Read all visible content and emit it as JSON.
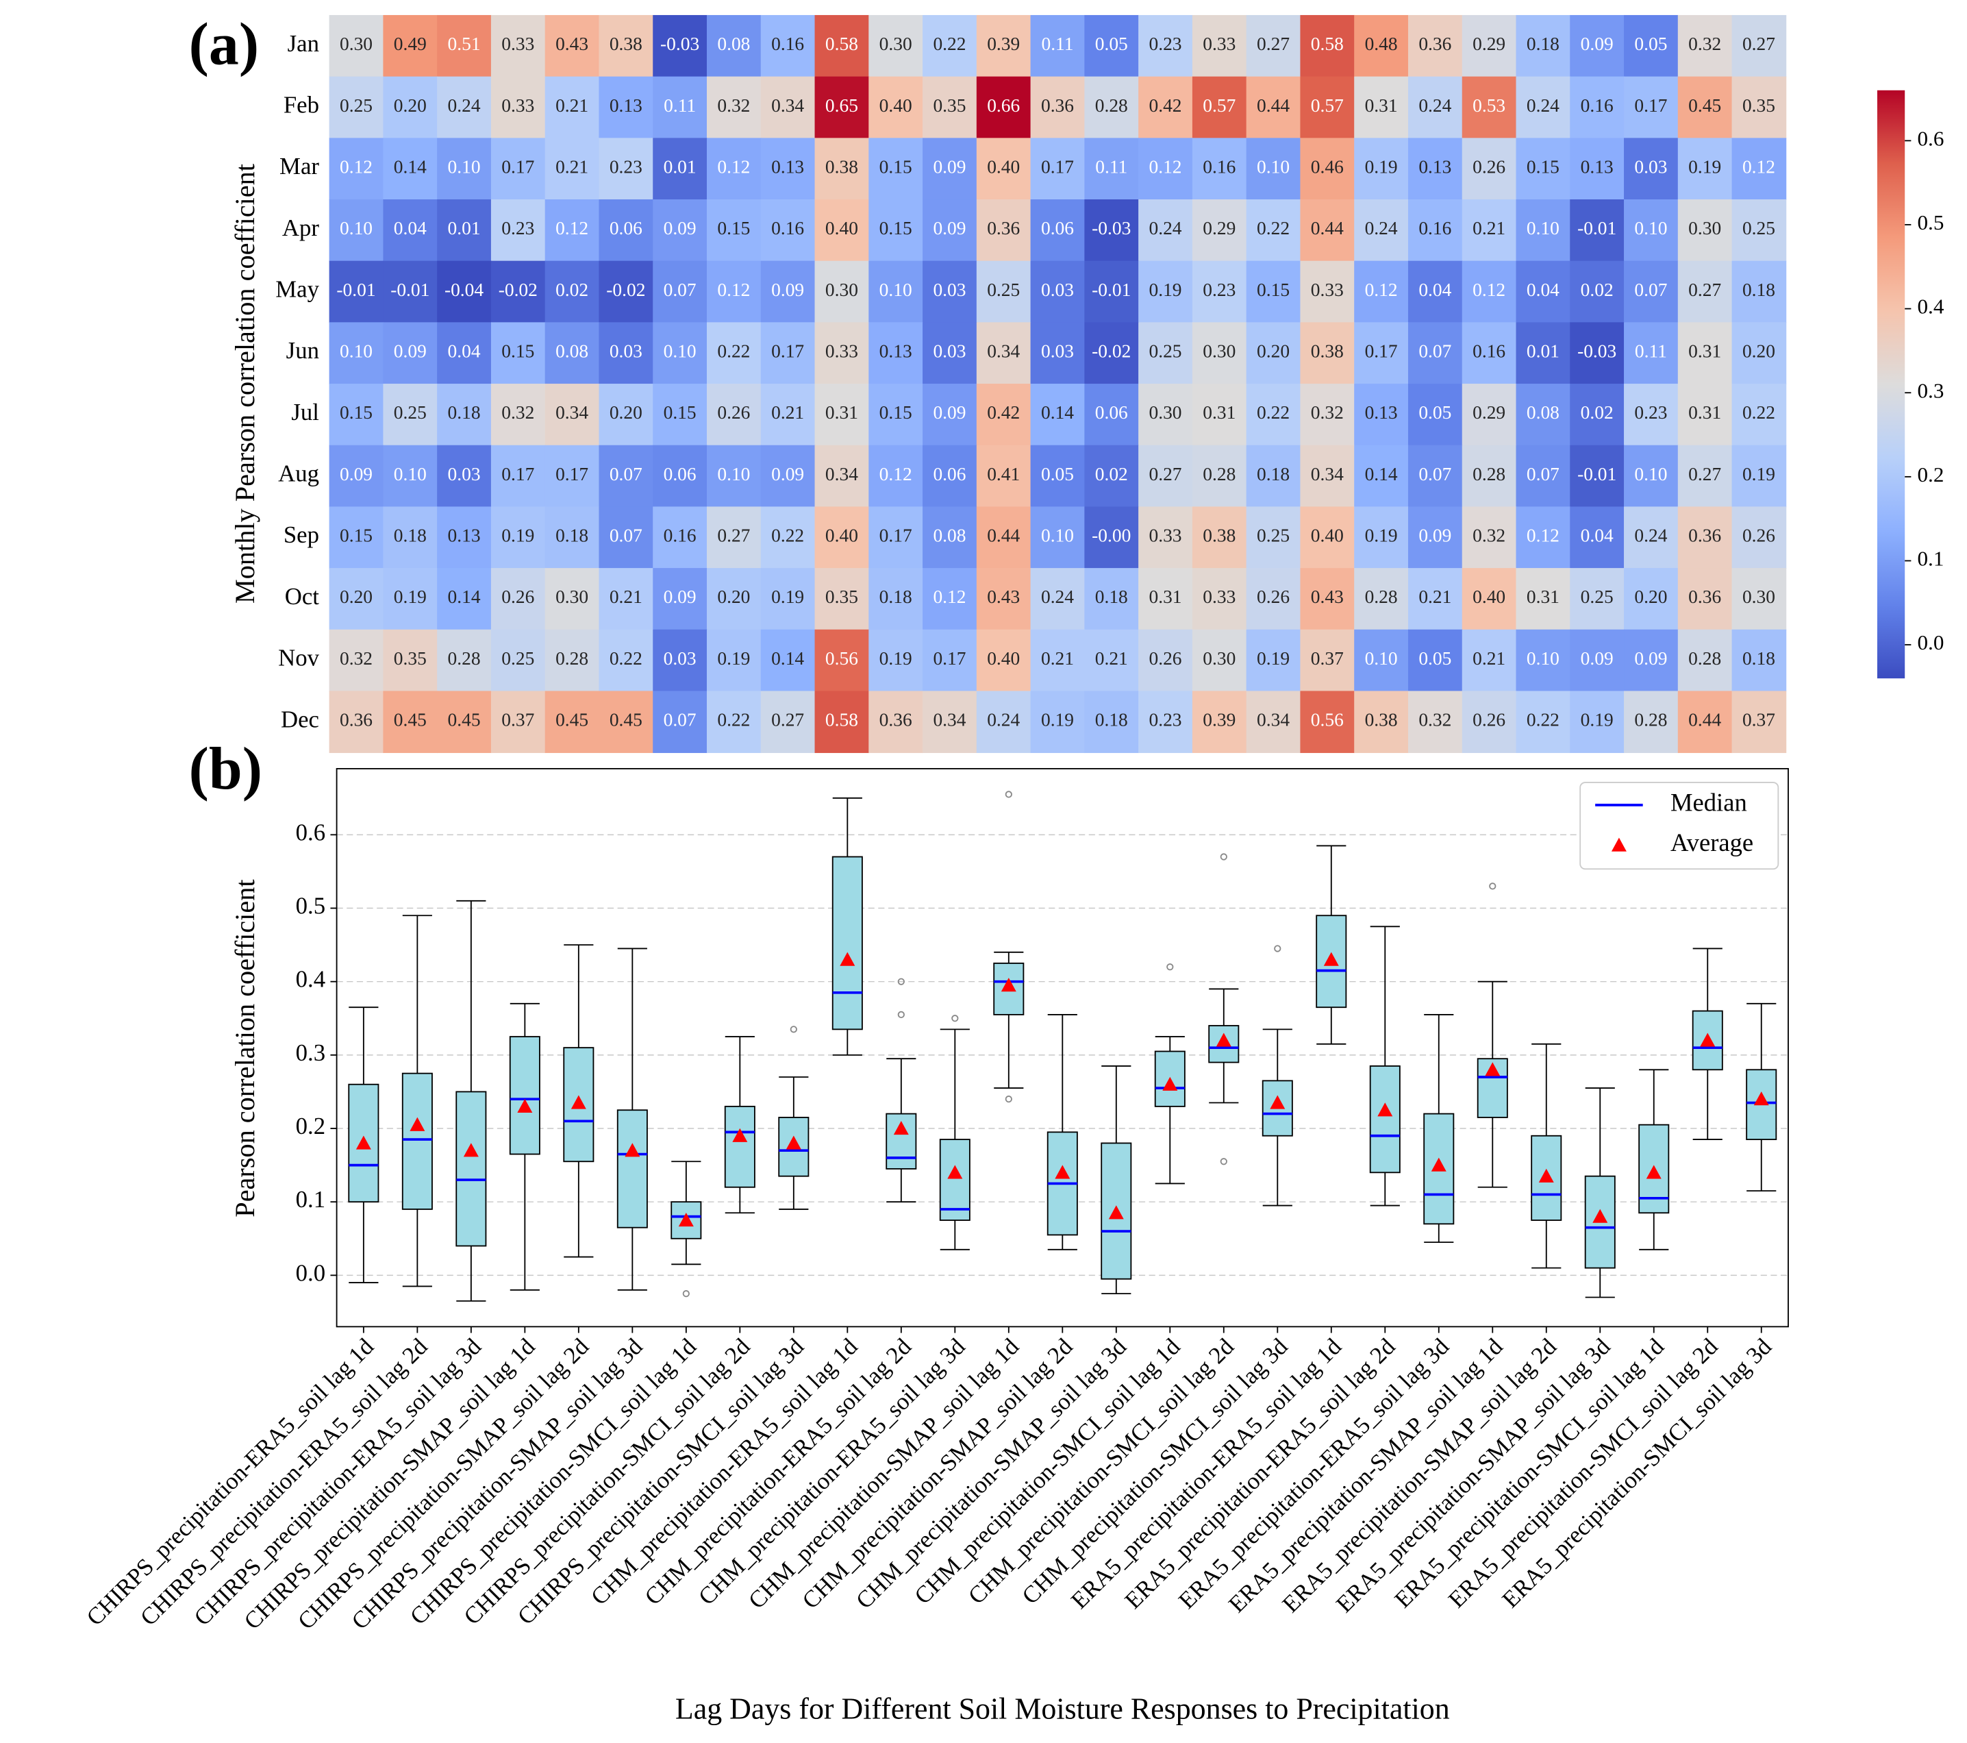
{
  "chart_data": [
    {
      "type": "heatmap",
      "panel_label": "(a)",
      "ylabel": "Monthly Pearson correlation coefficient",
      "rows": [
        "Jan",
        "Feb",
        "Mar",
        "Apr",
        "May",
        "Jun",
        "Jul",
        "Aug",
        "Sep",
        "Oct",
        "Nov",
        "Dec"
      ],
      "colormap": "coolwarm",
      "clim": [
        -0.04,
        0.66
      ],
      "cticks": [
        {
          "value": 0,
          "label": "0.0"
        },
        0.1,
        0.2,
        0.3,
        0.4,
        0.5,
        0.6
      ],
      "values": [
        [
          0.3,
          0.49,
          0.51,
          0.33,
          0.43,
          0.38,
          -0.03,
          0.08,
          0.16,
          0.58,
          0.3,
          0.22,
          0.39,
          0.11,
          0.05,
          0.23,
          0.33,
          0.27,
          0.58,
          0.48,
          0.36,
          0.29,
          0.18,
          0.09,
          0.05,
          0.32,
          0.27
        ],
        [
          0.25,
          0.2,
          0.24,
          0.33,
          0.21,
          0.13,
          0.11,
          0.32,
          0.34,
          0.65,
          0.4,
          0.35,
          0.66,
          0.36,
          0.28,
          0.42,
          0.57,
          0.44,
          0.57,
          0.31,
          0.24,
          0.53,
          0.24,
          0.16,
          0.17,
          0.45,
          0.35
        ],
        [
          0.12,
          0.14,
          0.1,
          0.17,
          0.21,
          0.23,
          0.01,
          0.12,
          0.13,
          0.38,
          0.15,
          0.09,
          0.4,
          0.17,
          0.11,
          0.12,
          0.16,
          0.1,
          0.46,
          0.19,
          0.13,
          0.26,
          0.15,
          0.13,
          0.03,
          0.19,
          0.12
        ],
        [
          0.1,
          0.04,
          0.01,
          0.23,
          0.12,
          0.06,
          0.09,
          0.15,
          0.16,
          0.4,
          0.15,
          0.09,
          0.36,
          0.06,
          -0.03,
          0.24,
          0.29,
          0.22,
          0.44,
          0.24,
          0.16,
          0.21,
          0.1,
          -0.01,
          0.1,
          0.3,
          0.25
        ],
        [
          -0.01,
          -0.01,
          -0.04,
          -0.02,
          0.02,
          -0.02,
          0.07,
          0.12,
          0.09,
          0.3,
          0.1,
          0.03,
          0.25,
          0.03,
          -0.01,
          0.19,
          0.23,
          0.15,
          0.33,
          0.12,
          0.04,
          0.12,
          0.04,
          0.02,
          0.07,
          0.27,
          0.18
        ],
        [
          0.1,
          0.09,
          0.04,
          0.15,
          0.08,
          0.03,
          0.1,
          0.22,
          0.17,
          0.33,
          0.13,
          0.03,
          0.34,
          0.03,
          -0.02,
          0.25,
          0.3,
          0.2,
          0.38,
          0.17,
          0.07,
          0.16,
          0.01,
          -0.03,
          0.11,
          0.31,
          0.2
        ],
        [
          0.15,
          0.25,
          0.18,
          0.32,
          0.34,
          0.2,
          0.15,
          0.26,
          0.21,
          0.31,
          0.15,
          0.09,
          0.42,
          0.14,
          0.06,
          0.3,
          0.31,
          0.22,
          0.32,
          0.13,
          0.05,
          0.29,
          0.08,
          0.02,
          0.23,
          0.31,
          0.22
        ],
        [
          0.09,
          0.1,
          0.03,
          0.17,
          0.17,
          0.07,
          0.06,
          0.1,
          0.09,
          0.34,
          0.12,
          0.06,
          0.41,
          0.05,
          0.02,
          0.27,
          0.28,
          0.18,
          0.34,
          0.14,
          0.07,
          0.28,
          0.07,
          -0.01,
          0.1,
          0.27,
          0.19
        ],
        [
          0.15,
          0.18,
          0.13,
          0.19,
          0.18,
          0.07,
          0.16,
          0.27,
          0.22,
          0.4,
          0.17,
          0.08,
          0.44,
          0.1,
          0,
          0.33,
          0.38,
          0.25,
          0.4,
          0.19,
          0.09,
          0.32,
          0.12,
          0.04,
          0.24,
          0.36,
          0.26
        ],
        [
          0.2,
          0.19,
          0.14,
          0.26,
          0.3,
          0.21,
          0.09,
          0.2,
          0.19,
          0.35,
          0.18,
          0.12,
          0.43,
          0.24,
          0.18,
          0.31,
          0.33,
          0.26,
          0.43,
          0.28,
          0.21,
          0.4,
          0.31,
          0.25,
          0.2,
          0.36,
          0.3
        ],
        [
          0.32,
          0.35,
          0.28,
          0.25,
          0.28,
          0.22,
          0.03,
          0.19,
          0.14,
          0.56,
          0.19,
          0.17,
          0.4,
          0.21,
          0.21,
          0.26,
          0.3,
          0.19,
          0.37,
          0.1,
          0.05,
          0.21,
          0.1,
          0.09,
          0.09,
          0.28,
          0.18
        ],
        [
          0.36,
          0.45,
          0.45,
          0.37,
          0.45,
          0.45,
          0.07,
          0.22,
          0.27,
          0.58,
          0.36,
          0.34,
          0.24,
          0.19,
          0.18,
          0.23,
          0.39,
          0.34,
          0.56,
          0.38,
          0.32,
          0.26,
          0.22,
          0.19,
          0.28,
          0.44,
          0.37
        ]
      ],
      "value_labels": [
        [
          "0.30",
          "0.49",
          "0.51",
          "0.33",
          "0.43",
          "0.38",
          "-0.03",
          "0.08",
          "0.16",
          "0.58",
          "0.30",
          "0.22",
          "0.39",
          "0.11",
          "0.05",
          "0.23",
          "0.33",
          "0.27",
          "0.58",
          "0.48",
          "0.36",
          "0.29",
          "0.18",
          "0.09",
          "0.05",
          "0.32",
          "0.27"
        ],
        [
          "0.25",
          "0.20",
          "0.24",
          "0.33",
          "0.21",
          "0.13",
          "0.11",
          "0.32",
          "0.34",
          "0.65",
          "0.40",
          "0.35",
          "0.66",
          "0.36",
          "0.28",
          "0.42",
          "0.57",
          "0.44",
          "0.57",
          "0.31",
          "0.24",
          "0.53",
          "0.24",
          "0.16",
          "0.17",
          "0.45",
          "0.35"
        ],
        [
          "0.12",
          "0.14",
          "0.10",
          "0.17",
          "0.21",
          "0.23",
          "0.01",
          "0.12",
          "0.13",
          "0.38",
          "0.15",
          "0.09",
          "0.40",
          "0.17",
          "0.11",
          "0.12",
          "0.16",
          "0.10",
          "0.46",
          "0.19",
          "0.13",
          "0.26",
          "0.15",
          "0.13",
          "0.03",
          "0.19",
          "0.12"
        ],
        [
          "0.10",
          "0.04",
          "0.01",
          "0.23",
          "0.12",
          "0.06",
          "0.09",
          "0.15",
          "0.16",
          "0.40",
          "0.15",
          "0.09",
          "0.36",
          "0.06",
          "-0.03",
          "0.24",
          "0.29",
          "0.22",
          "0.44",
          "0.24",
          "0.16",
          "0.21",
          "0.10",
          "-0.01",
          "0.10",
          "0.30",
          "0.25"
        ],
        [
          "-0.01",
          "-0.01",
          "-0.04",
          "-0.02",
          "0.02",
          "-0.02",
          "0.07",
          "0.12",
          "0.09",
          "0.30",
          "0.10",
          "0.03",
          "0.25",
          "0.03",
          "-0.01",
          "0.19",
          "0.23",
          "0.15",
          "0.33",
          "0.12",
          "0.04",
          "0.12",
          "0.04",
          "0.02",
          "0.07",
          "0.27",
          "0.18"
        ],
        [
          "0.10",
          "0.09",
          "0.04",
          "0.15",
          "0.08",
          "0.03",
          "0.10",
          "0.22",
          "0.17",
          "0.33",
          "0.13",
          "0.03",
          "0.34",
          "0.03",
          "-0.02",
          "0.25",
          "0.30",
          "0.20",
          "0.38",
          "0.17",
          "0.07",
          "0.16",
          "0.01",
          "-0.03",
          "0.11",
          "0.31",
          "0.20"
        ],
        [
          "0.15",
          "0.25",
          "0.18",
          "0.32",
          "0.34",
          "0.20",
          "0.15",
          "0.26",
          "0.21",
          "0.31",
          "0.15",
          "0.09",
          "0.42",
          "0.14",
          "0.06",
          "0.30",
          "0.31",
          "0.22",
          "0.32",
          "0.13",
          "0.05",
          "0.29",
          "0.08",
          "0.02",
          "0.23",
          "0.31",
          "0.22"
        ],
        [
          "0.09",
          "0.10",
          "0.03",
          "0.17",
          "0.17",
          "0.07",
          "0.06",
          "0.10",
          "0.09",
          "0.34",
          "0.12",
          "0.06",
          "0.41",
          "0.05",
          "0.02",
          "0.27",
          "0.28",
          "0.18",
          "0.34",
          "0.14",
          "0.07",
          "0.28",
          "0.07",
          "-0.01",
          "0.10",
          "0.27",
          "0.19"
        ],
        [
          "0.15",
          "0.18",
          "0.13",
          "0.19",
          "0.18",
          "0.07",
          "0.16",
          "0.27",
          "0.22",
          "0.40",
          "0.17",
          "0.08",
          "0.44",
          "0.10",
          "-0.00",
          "0.33",
          "0.38",
          "0.25",
          "0.40",
          "0.19",
          "0.09",
          "0.32",
          "0.12",
          "0.04",
          "0.24",
          "0.36",
          "0.26"
        ],
        [
          "0.20",
          "0.19",
          "0.14",
          "0.26",
          "0.30",
          "0.21",
          "0.09",
          "0.20",
          "0.19",
          "0.35",
          "0.18",
          "0.12",
          "0.43",
          "0.24",
          "0.18",
          "0.31",
          "0.33",
          "0.26",
          "0.43",
          "0.28",
          "0.21",
          "0.40",
          "0.31",
          "0.25",
          "0.20",
          "0.36",
          "0.30"
        ],
        [
          "0.32",
          "0.35",
          "0.28",
          "0.25",
          "0.28",
          "0.22",
          "0.03",
          "0.19",
          "0.14",
          "0.56",
          "0.19",
          "0.17",
          "0.40",
          "0.21",
          "0.21",
          "0.26",
          "0.30",
          "0.19",
          "0.37",
          "0.10",
          "0.05",
          "0.21",
          "0.10",
          "0.09",
          "0.09",
          "0.28",
          "0.18"
        ],
        [
          "0.36",
          "0.45",
          "0.45",
          "0.37",
          "0.45",
          "0.45",
          "0.07",
          "0.22",
          "0.27",
          "0.58",
          "0.36",
          "0.34",
          "0.24",
          "0.19",
          "0.18",
          "0.23",
          "0.39",
          "0.34",
          "0.56",
          "0.38",
          "0.32",
          "0.26",
          "0.22",
          "0.19",
          "0.28",
          "0.44",
          "0.37"
        ]
      ]
    },
    {
      "type": "box",
      "panel_label": "(b)",
      "ylabel": "Pearson correlation coefficient",
      "xlabel": "Lag Days for Different Soil Moisture Responses to Precipitation",
      "categories": [
        "CHIRPS_precipitation-ERA5_soil lag 1d",
        "CHIRPS_precipitation-ERA5_soil lag 2d",
        "CHIRPS_precipitation-ERA5_soil lag 3d",
        "CHIRPS_precipitation-SMAP_soil lag 1d",
        "CHIRPS_precipitation-SMAP_soil lag 2d",
        "CHIRPS_precipitation-SMAP_soil lag 3d",
        "CHIRPS_precipitation-SMCI_soil lag 1d",
        "CHIRPS_precipitation-SMCI_soil lag 2d",
        "CHIRPS_precipitation-SMCI_soil lag 3d",
        "CHM_precipitation-ERA5_soil lag 1d",
        "CHM_precipitation-ERA5_soil lag 2d",
        "CHM_precipitation-ERA5_soil lag 3d",
        "CHM_precipitation-SMAP_soil lag 1d",
        "CHM_precipitation-SMAP_soil lag 2d",
        "CHM_precipitation-SMAP_soil lag 3d",
        "CHM_precipitation-SMCI_soil lag 1d",
        "CHM_precipitation-SMCI_soil lag 2d",
        "CHM_precipitation-SMCI_soil lag 3d",
        "ERA5_precipitation-ERA5_soil lag 1d",
        "ERA5_precipitation-ERA5_soil lag 2d",
        "ERA5_precipitation-ERA5_soil lag 3d",
        "ERA5_precipitation-SMAP_soil lag 1d",
        "ERA5_precipitation-SMAP_soil lag 2d",
        "ERA5_precipitation-SMAP_soil lag 3d",
        "ERA5_precipitation-SMCI_soil lag 1d",
        "ERA5_precipitation-SMCI_soil lag 2d",
        "ERA5_precipitation-SMCI_soil lag 3d"
      ],
      "boxes": [
        {
          "whislo": -0.01,
          "q1": 0.1,
          "med": 0.15,
          "q3": 0.26,
          "whishi": 0.365,
          "mean": 0.18,
          "fliers": []
        },
        {
          "whislo": -0.015,
          "q1": 0.09,
          "med": 0.185,
          "q3": 0.275,
          "whishi": 0.49,
          "mean": 0.205,
          "fliers": []
        },
        {
          "whislo": -0.035,
          "q1": 0.04,
          "med": 0.13,
          "q3": 0.25,
          "whishi": 0.51,
          "mean": 0.17,
          "fliers": []
        },
        {
          "whislo": -0.02,
          "q1": 0.165,
          "med": 0.24,
          "q3": 0.325,
          "whishi": 0.37,
          "mean": 0.23,
          "fliers": []
        },
        {
          "whislo": 0.025,
          "q1": 0.155,
          "med": 0.21,
          "q3": 0.31,
          "whishi": 0.45,
          "mean": 0.235,
          "fliers": []
        },
        {
          "whislo": -0.02,
          "q1": 0.065,
          "med": 0.165,
          "q3": 0.225,
          "whishi": 0.445,
          "mean": 0.17,
          "fliers": []
        },
        {
          "whislo": 0.015,
          "q1": 0.05,
          "med": 0.08,
          "q3": 0.1,
          "whishi": 0.155,
          "mean": 0.075,
          "fliers": [
            -0.025
          ]
        },
        {
          "whislo": 0.085,
          "q1": 0.12,
          "med": 0.195,
          "q3": 0.23,
          "whishi": 0.325,
          "mean": 0.19,
          "fliers": []
        },
        {
          "whislo": 0.09,
          "q1": 0.135,
          "med": 0.17,
          "q3": 0.215,
          "whishi": 0.27,
          "mean": 0.18,
          "fliers": [
            0.335
          ]
        },
        {
          "whislo": 0.3,
          "q1": 0.335,
          "med": 0.385,
          "q3": 0.57,
          "whishi": 0.65,
          "mean": 0.43,
          "fliers": []
        },
        {
          "whislo": 0.1,
          "q1": 0.145,
          "med": 0.16,
          "q3": 0.22,
          "whishi": 0.295,
          "mean": 0.2,
          "fliers": [
            0.4,
            0.355
          ]
        },
        {
          "whislo": 0.035,
          "q1": 0.075,
          "med": 0.09,
          "q3": 0.185,
          "whishi": 0.335,
          "mean": 0.14,
          "fliers": [
            0.35
          ]
        },
        {
          "whislo": 0.255,
          "q1": 0.355,
          "med": 0.4,
          "q3": 0.425,
          "whishi": 0.44,
          "mean": 0.395,
          "fliers": [
            0.24,
            0.655
          ]
        },
        {
          "whislo": 0.035,
          "q1": 0.055,
          "med": 0.125,
          "q3": 0.195,
          "whishi": 0.355,
          "mean": 0.14,
          "fliers": []
        },
        {
          "whislo": -0.025,
          "q1": -0.005,
          "med": 0.06,
          "q3": 0.18,
          "whishi": 0.285,
          "mean": 0.085,
          "fliers": []
        },
        {
          "whislo": 0.125,
          "q1": 0.23,
          "med": 0.255,
          "q3": 0.305,
          "whishi": 0.325,
          "mean": 0.26,
          "fliers": [
            0.42
          ]
        },
        {
          "whislo": 0.235,
          "q1": 0.29,
          "med": 0.31,
          "q3": 0.34,
          "whishi": 0.39,
          "mean": 0.32,
          "fliers": [
            0.155,
            0.57
          ]
        },
        {
          "whislo": 0.095,
          "q1": 0.19,
          "med": 0.22,
          "q3": 0.265,
          "whishi": 0.335,
          "mean": 0.235,
          "fliers": [
            0.445
          ]
        },
        {
          "whislo": 0.315,
          "q1": 0.365,
          "med": 0.415,
          "q3": 0.49,
          "whishi": 0.585,
          "mean": 0.43,
          "fliers": []
        },
        {
          "whislo": 0.095,
          "q1": 0.14,
          "med": 0.19,
          "q3": 0.285,
          "whishi": 0.475,
          "mean": 0.225,
          "fliers": []
        },
        {
          "whislo": 0.045,
          "q1": 0.07,
          "med": 0.11,
          "q3": 0.22,
          "whishi": 0.355,
          "mean": 0.15,
          "fliers": []
        },
        {
          "whislo": 0.12,
          "q1": 0.215,
          "med": 0.27,
          "q3": 0.295,
          "whishi": 0.4,
          "mean": 0.28,
          "fliers": [
            0.53
          ]
        },
        {
          "whislo": 0.01,
          "q1": 0.075,
          "med": 0.11,
          "q3": 0.19,
          "whishi": 0.315,
          "mean": 0.135,
          "fliers": []
        },
        {
          "whislo": -0.03,
          "q1": 0.01,
          "med": 0.065,
          "q3": 0.135,
          "whishi": 0.255,
          "mean": 0.08,
          "fliers": []
        },
        {
          "whislo": 0.035,
          "q1": 0.085,
          "med": 0.105,
          "q3": 0.205,
          "whishi": 0.28,
          "mean": 0.14,
          "fliers": []
        },
        {
          "whislo": 0.185,
          "q1": 0.28,
          "med": 0.31,
          "q3": 0.36,
          "whishi": 0.445,
          "mean": 0.32,
          "fliers": []
        },
        {
          "whislo": 0.115,
          "q1": 0.185,
          "med": 0.235,
          "q3": 0.28,
          "whishi": 0.37,
          "mean": 0.24,
          "fliers": []
        }
      ],
      "box_color": "#9edae5",
      "legend": {
        "loc": "upper right",
        "entries": [
          {
            "name": "Median",
            "color": "#0000ff"
          },
          {
            "name": "Average",
            "color": "#ff0000"
          }
        ]
      },
      "ylim": [
        -0.07,
        0.69
      ],
      "yticks": [
        {
          "value": 0,
          "label": "0.0"
        },
        0.1,
        0.2,
        0.3,
        0.4,
        0.5,
        0.6
      ],
      "grid": true
    }
  ]
}
